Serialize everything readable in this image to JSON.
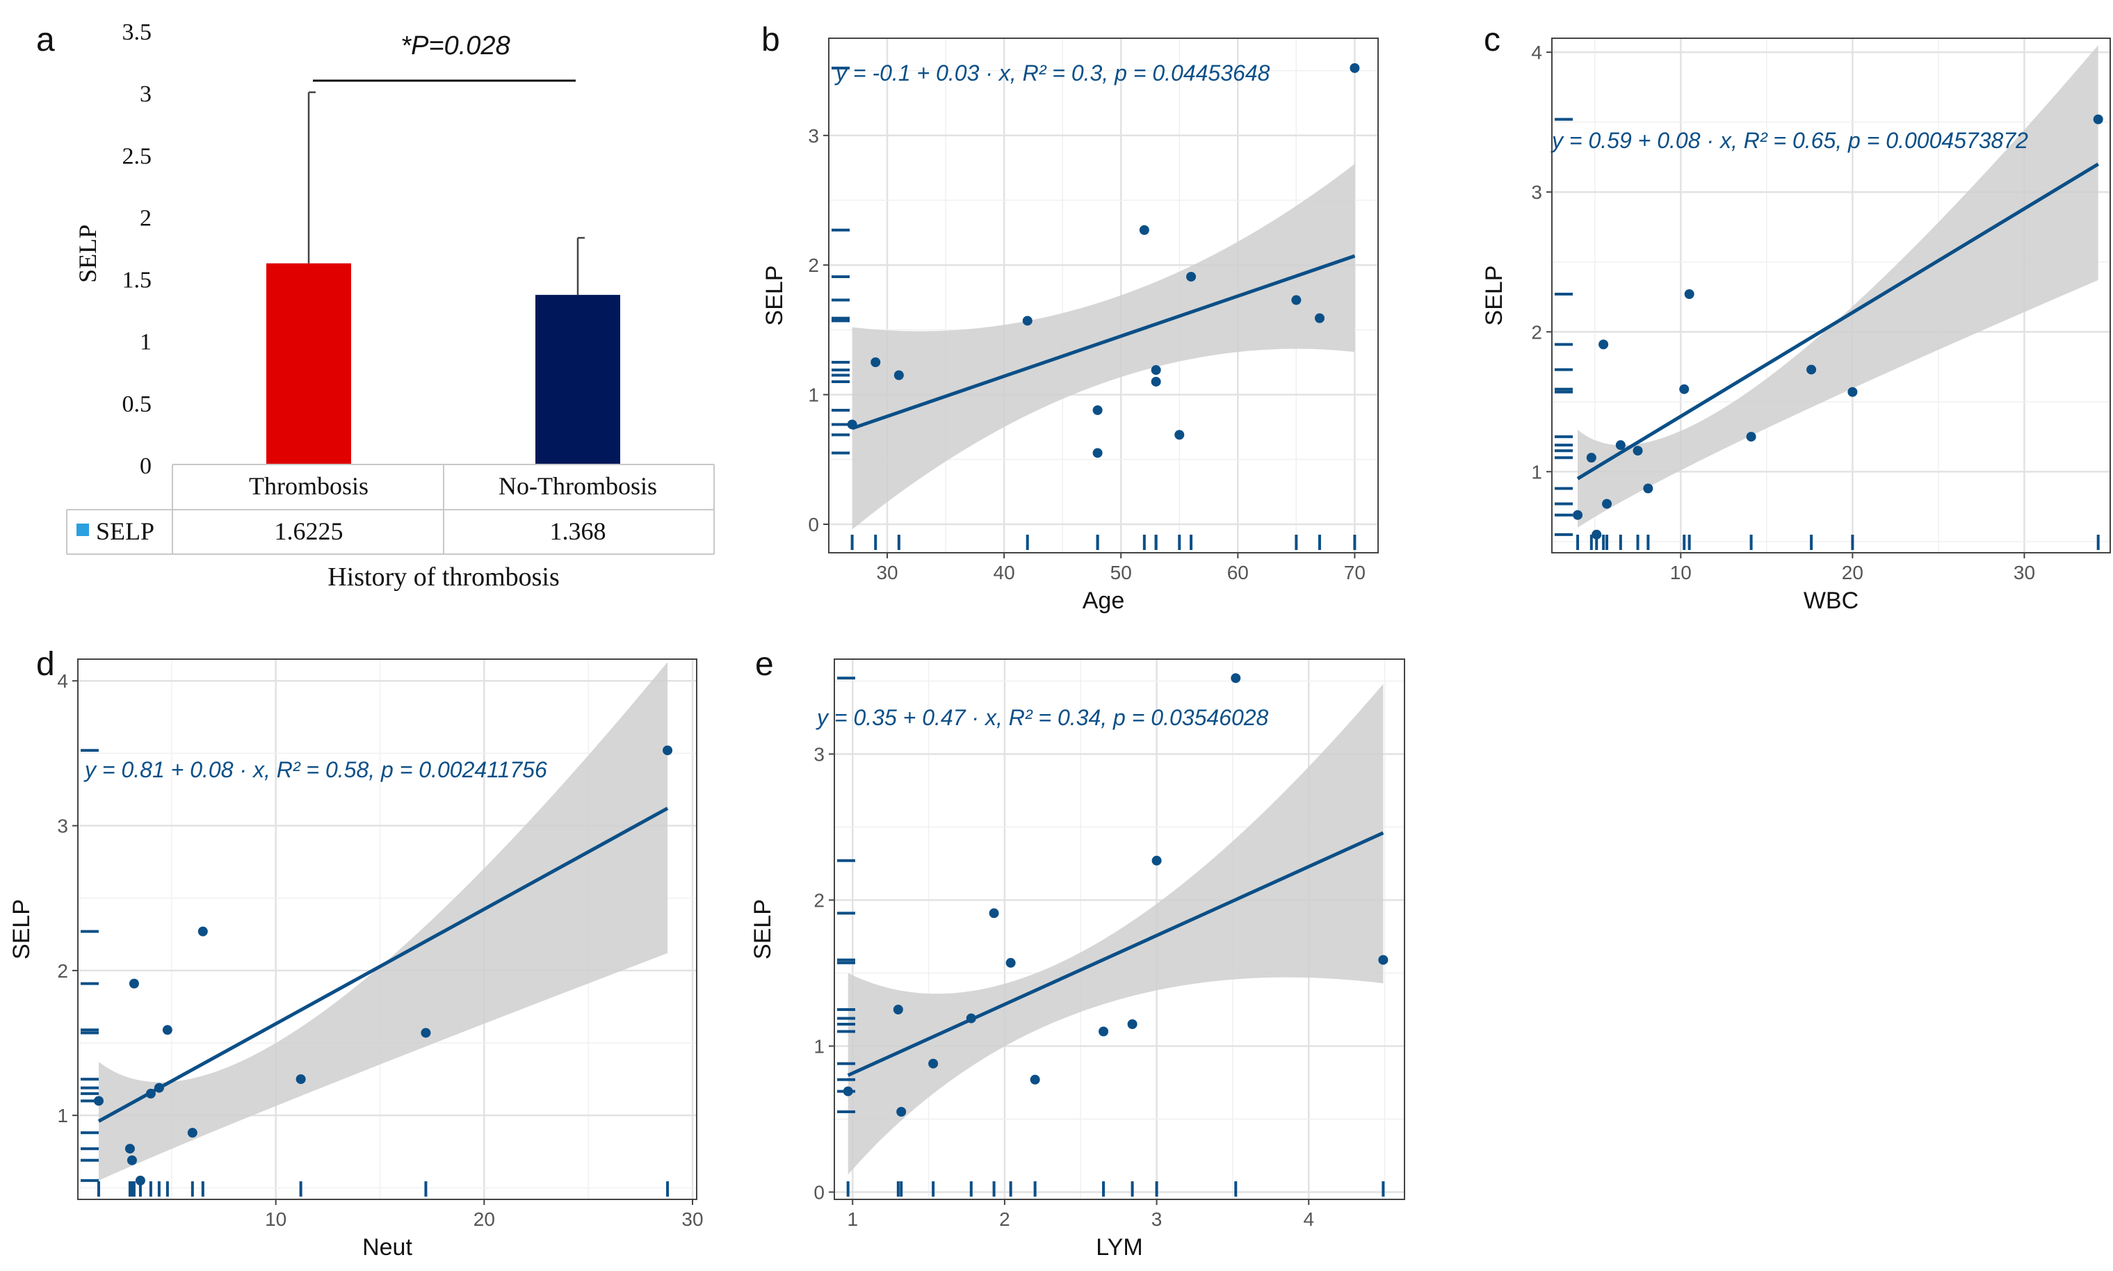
{
  "chart_data": [
    {
      "panel": "a",
      "type": "bar",
      "title": "",
      "annotation": "*P=0.028",
      "categories": [
        "Thrombosis",
        "No-Thrombosis"
      ],
      "series": [
        {
          "name": "SELP",
          "values": [
            1.6225,
            1.368
          ],
          "errors": [
            1.38,
            0.46
          ]
        }
      ],
      "value_labels": [
        "1.6225",
        "1.368"
      ],
      "ylabel": "SELP",
      "xlabel": "History of thrombosis",
      "yticks": [
        "0",
        "0.5",
        "1",
        "1.5",
        "2",
        "2.5",
        "3",
        "3.5"
      ],
      "ylim": [
        0,
        3.5
      ],
      "colors": [
        "#e00000",
        "#00185a"
      ],
      "legend_color": "#2aa0e0"
    },
    {
      "panel": "b",
      "type": "scatter",
      "equation": "y = -0.1 + 0.03 · x,  R² = 0.3,  p = 0.04453648",
      "xlabel": "Age",
      "ylabel": "SELP",
      "xlim": [
        25,
        72
      ],
      "ylim": [
        -0.22,
        3.75
      ],
      "xticks": [
        30,
        40,
        50,
        60,
        70
      ],
      "yticks": [
        0,
        1,
        2,
        3
      ],
      "x": [
        27,
        29,
        31,
        42,
        48,
        48,
        52,
        53,
        53,
        55,
        56,
        65,
        67,
        70
      ],
      "y": [
        0.77,
        1.25,
        1.15,
        1.57,
        0.88,
        0.55,
        2.27,
        1.19,
        1.1,
        0.69,
        1.91,
        1.73,
        1.59,
        3.52
      ],
      "fit": {
        "x": [
          27,
          70
        ],
        "y": [
          0.74,
          2.07
        ]
      },
      "band": {
        "x": [
          27,
          48.5,
          70
        ],
        "upper": [
          1.52,
          1.72,
          2.78
        ],
        "lower": [
          -0.04,
          1.09,
          1.33
        ]
      }
    },
    {
      "panel": "c",
      "type": "scatter",
      "equation": "y = 0.59 + 0.08 · x,  R² = 0.65,  p = 0.0004573872",
      "xlabel": "WBC",
      "ylabel": "SELP",
      "xlim": [
        2.5,
        35
      ],
      "ylim": [
        0.42,
        4.1
      ],
      "xticks": [
        10,
        20,
        30
      ],
      "yticks": [
        1,
        2,
        3,
        4
      ],
      "x": [
        4,
        4.8,
        5.1,
        5.5,
        5.7,
        6.5,
        7.5,
        8.1,
        10.2,
        10.5,
        14.1,
        17.6,
        20,
        34.3
      ],
      "y": [
        0.69,
        1.1,
        0.55,
        1.91,
        0.77,
        1.19,
        1.15,
        0.88,
        1.59,
        2.27,
        1.25,
        1.73,
        1.57,
        3.52
      ],
      "fit": {
        "x": [
          4,
          34.3
        ],
        "y": [
          0.95,
          3.2
        ]
      },
      "band": {
        "x": [
          4,
          10.5,
          34.3
        ],
        "upper": [
          1.3,
          1.65,
          4.05
        ],
        "lower": [
          0.6,
          1.3,
          2.37
        ]
      }
    },
    {
      "panel": "d",
      "type": "scatter",
      "equation": "y = 0.81 + 0.08 · x,  R² = 0.58,  p = 0.002411756",
      "xlabel": "Neut",
      "ylabel": "SELP",
      "xlim": [
        0.5,
        30.2
      ],
      "ylim": [
        0.42,
        4.15
      ],
      "xticks": [
        10,
        20,
        30
      ],
      "yticks": [
        1,
        2,
        3,
        4
      ],
      "x": [
        1.5,
        3.0,
        3.1,
        3.2,
        3.5,
        4.0,
        4.4,
        4.8,
        6.0,
        6.5,
        11.2,
        17.2,
        28.8
      ],
      "y": [
        1.1,
        0.77,
        0.69,
        1.91,
        0.55,
        1.15,
        1.19,
        1.59,
        0.88,
        2.27,
        1.25,
        1.57,
        3.52
      ],
      "fit": {
        "x": [
          1.5,
          28.8
        ],
        "y": [
          0.96,
          3.12
        ]
      },
      "band": {
        "x": [
          1.5,
          8.5,
          28.8
        ],
        "upper": [
          1.37,
          1.67,
          4.13
        ],
        "lower": [
          0.55,
          1.17,
          2.12
        ]
      }
    },
    {
      "panel": "e",
      "type": "scatter",
      "equation": "y = 0.35 + 0.47 · x,  R² = 0.34,  p = 0.03546028",
      "xlabel": "LYM",
      "ylabel": "SELP",
      "xlim": [
        0.88,
        4.63
      ],
      "ylim": [
        -0.05,
        3.65
      ],
      "xticks": [
        1,
        2,
        3,
        4
      ],
      "yticks": [
        0,
        1,
        2,
        3
      ],
      "x": [
        0.97,
        1.3,
        1.32,
        1.53,
        1.78,
        1.93,
        2.04,
        2.2,
        2.65,
        2.84,
        3.0,
        3.52,
        4.49
      ],
      "y": [
        0.69,
        1.25,
        0.55,
        0.88,
        1.19,
        1.91,
        1.57,
        0.77,
        1.1,
        1.15,
        2.27,
        3.52,
        1.59
      ],
      "fit": {
        "x": [
          0.97,
          4.49
        ],
        "y": [
          0.8,
          2.46
        ]
      },
      "band": {
        "x": [
          0.97,
          2.3,
          4.49
        ],
        "upper": [
          1.5,
          1.65,
          3.48
        ],
        "lower": [
          0.12,
          1.24,
          1.43
        ]
      }
    }
  ]
}
